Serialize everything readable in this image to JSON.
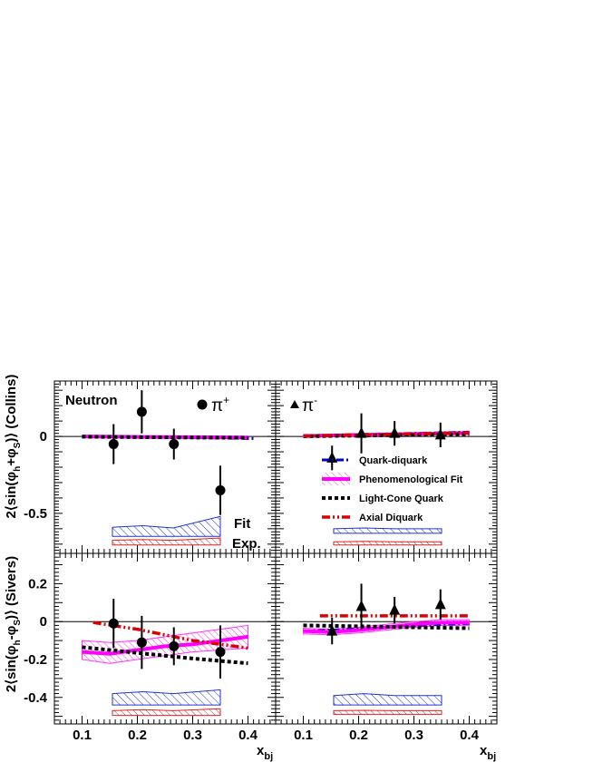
{
  "chart_data": {
    "type": "scatter",
    "xlabel": "x",
    "xlabel_sub": "bj",
    "xlim": [
      0.05,
      0.45
    ],
    "x_ticks": [
      "0.1",
      "0.2",
      "0.3",
      "0.4"
    ],
    "legend": {
      "position": "right-middle of top-right panel",
      "entries": [
        {
          "label": "Quark-diquark",
          "color": "#0000cc",
          "style": "dash-dot"
        },
        {
          "label": "Phenomenological Fit",
          "color": "#ff00ff",
          "style": "band"
        },
        {
          "label": "Light-Cone Quark",
          "color": "#000000",
          "style": "dotted"
        },
        {
          "label": "Axial Diquark",
          "color": "#dd0000",
          "style": "dash-dot-dot"
        }
      ]
    },
    "band_labels": {
      "fit": "Fit",
      "exp": "Exp."
    },
    "rows": [
      {
        "ylabel_pre": "2⟨sin(φ",
        "ylabel_sub1": "h",
        "ylabel_mid": "+φ",
        "ylabel_sub2": "S",
        "ylabel_post": ")⟩ (Collins)",
        "ylim": [
          -0.76,
          0.36
        ],
        "y_ticks": [
          {
            "v": 0,
            "t": "0"
          },
          {
            "v": -0.5,
            "t": "-0.5"
          }
        ]
      },
      {
        "ylabel_pre": "2⟨sin(φ",
        "ylabel_sub1": "h",
        "ylabel_mid": "-φ",
        "ylabel_sub2": "S",
        "ylabel_post": ")⟩ (Sivers)",
        "ylim": [
          -0.54,
          0.36
        ],
        "y_ticks": [
          {
            "v": 0.2,
            "t": "0.2"
          },
          {
            "v": 0,
            "t": "0"
          },
          {
            "v": -0.2,
            "t": "-0.2"
          },
          {
            "v": -0.4,
            "t": "-0.4"
          }
        ]
      }
    ],
    "panels": [
      {
        "row": 0,
        "col": 0,
        "target": "Neutron",
        "hadron": "π",
        "charge": "+",
        "marker": "circle",
        "points": {
          "x": [
            0.157,
            0.208,
            0.266,
            0.35
          ],
          "y": [
            -0.05,
            0.16,
            -0.05,
            -0.35
          ],
          "err": [
            0.13,
            0.14,
            0.1,
            0.16
          ]
        },
        "fit_band": {
          "x": [
            0.1,
            0.12,
            0.15,
            0.2,
            0.25,
            0.3,
            0.35,
            0.4
          ],
          "lo": [
            -0.005,
            -0.006,
            -0.007,
            -0.008,
            -0.009,
            -0.01,
            -0.011,
            -0.012
          ],
          "hi": [
            0.005,
            0.004,
            0.003,
            0.002,
            0.001,
            0.0,
            -0.001,
            -0.002
          ]
        },
        "curves": [
          {
            "name": "Quark-diquark",
            "x": [
              0.1,
              0.2,
              0.3,
              0.41
            ],
            "y": [
              0.0,
              -0.004,
              -0.008,
              -0.014
            ]
          },
          {
            "name": "Phenomenological Fit",
            "x": [
              0.1,
              0.2,
              0.3,
              0.4
            ],
            "y": [
              0.0,
              -0.003,
              -0.005,
              -0.007
            ]
          },
          {
            "name": "Light-Cone Quark",
            "x": [
              0.1,
              0.2,
              0.3,
              0.4
            ],
            "y": [
              -0.002,
              -0.005,
              -0.007,
              -0.009
            ]
          }
        ],
        "sys_fit": {
          "x": [
            0.155,
            0.21,
            0.265,
            0.35
          ],
          "lo": -0.65,
          "hi": [
            -0.59,
            -0.58,
            -0.595,
            -0.52
          ]
        },
        "sys_exp": {
          "x": [
            0.155,
            0.21,
            0.265,
            0.35
          ],
          "lo": -0.705,
          "hi": [
            -0.675,
            -0.67,
            -0.675,
            -0.66
          ]
        }
      },
      {
        "row": 0,
        "col": 1,
        "hadron": "π",
        "charge": "-",
        "marker": "triangle",
        "points": {
          "x": [
            0.152,
            0.205,
            0.265,
            0.348
          ],
          "y": [
            -0.14,
            0.02,
            0.02,
            0.01
          ],
          "err": [
            0.08,
            0.13,
            0.08,
            0.08
          ]
        },
        "fit_band": {
          "x": [
            0.1,
            0.15,
            0.2,
            0.25,
            0.3,
            0.35,
            0.4
          ],
          "lo": [
            -0.002,
            0.0,
            0.003,
            0.006,
            0.009,
            0.012,
            0.014
          ],
          "hi": [
            0.008,
            0.012,
            0.016,
            0.02,
            0.024,
            0.028,
            0.032
          ]
        },
        "curves": [
          {
            "name": "Quark-diquark",
            "x": [
              0.1,
              0.2,
              0.3,
              0.4
            ],
            "y": [
              0.005,
              0.013,
              0.02,
              0.028
            ]
          },
          {
            "name": "Phenomenological Fit",
            "x": [
              0.1,
              0.2,
              0.3,
              0.4
            ],
            "y": [
              0.002,
              0.009,
              0.016,
              0.022
            ]
          },
          {
            "name": "Light-Cone Quark",
            "x": [
              0.1,
              0.2,
              0.3,
              0.4
            ],
            "y": [
              0.001,
              0.005,
              0.01,
              0.015
            ]
          },
          {
            "name": "Axial Diquark",
            "x": [
              0.1,
              0.2,
              0.3,
              0.4
            ],
            "y": [
              0.003,
              0.01,
              0.017,
              0.024
            ]
          }
        ],
        "sys_fit": {
          "x": [
            0.155,
            0.21,
            0.265,
            0.35
          ],
          "lo": -0.63,
          "hi": [
            -0.6,
            -0.595,
            -0.6,
            -0.6
          ]
        },
        "sys_exp": {
          "x": [
            0.155,
            0.21,
            0.265,
            0.35
          ],
          "lo": -0.705,
          "hi": [
            -0.685,
            -0.682,
            -0.685,
            -0.685
          ]
        }
      },
      {
        "row": 1,
        "col": 0,
        "points": {
          "x": [
            0.157,
            0.208,
            0.266,
            0.35
          ],
          "y": [
            -0.01,
            -0.11,
            -0.13,
            -0.16
          ],
          "err": [
            0.13,
            0.14,
            0.1,
            0.14
          ]
        },
        "fit_band": {
          "x": [
            0.1,
            0.15,
            0.2,
            0.25,
            0.3,
            0.35,
            0.4
          ],
          "lo": [
            -0.2,
            -0.22,
            -0.2,
            -0.18,
            -0.16,
            -0.15,
            -0.14
          ],
          "hi": [
            -0.1,
            -0.11,
            -0.1,
            -0.08,
            -0.06,
            -0.04,
            -0.02
          ]
        },
        "curves": [
          {
            "name": "Phenomenological Fit",
            "x": [
              0.1,
              0.15,
              0.2,
              0.25,
              0.3,
              0.35,
              0.4
            ],
            "y": [
              -0.16,
              -0.17,
              -0.15,
              -0.13,
              -0.12,
              -0.1,
              -0.08
            ]
          },
          {
            "name": "Light-Cone Quark",
            "x": [
              0.1,
              0.2,
              0.3,
              0.4
            ],
            "y": [
              -0.135,
              -0.165,
              -0.195,
              -0.22
            ]
          },
          {
            "name": "Axial Diquark",
            "x": [
              0.12,
              0.2,
              0.3,
              0.4
            ],
            "y": [
              -0.005,
              -0.04,
              -0.1,
              -0.14
            ]
          }
        ],
        "sys_fit": {
          "x": [
            0.155,
            0.21,
            0.265,
            0.35
          ],
          "lo": -0.44,
          "hi": [
            -0.38,
            -0.37,
            -0.38,
            -0.36
          ]
        },
        "sys_exp": {
          "x": [
            0.155,
            0.21,
            0.265,
            0.35
          ],
          "lo": -0.495,
          "hi": [
            -0.47,
            -0.465,
            -0.47,
            -0.46
          ]
        }
      },
      {
        "row": 1,
        "col": 1,
        "points": {
          "x": [
            0.152,
            0.205,
            0.265,
            0.348
          ],
          "y": [
            -0.05,
            0.08,
            0.06,
            0.09
          ],
          "err": [
            0.07,
            0.12,
            0.07,
            0.08
          ]
        },
        "fit_band": {
          "x": [
            0.1,
            0.15,
            0.2,
            0.25,
            0.3,
            0.35,
            0.4
          ],
          "lo": [
            -0.065,
            -0.07,
            -0.06,
            -0.045,
            -0.03,
            -0.02,
            -0.02
          ],
          "hi": [
            -0.035,
            -0.04,
            -0.03,
            -0.015,
            0.0,
            0.01,
            0.01
          ]
        },
        "curves": [
          {
            "name": "Quark-diquark",
            "x": [
              0.1,
              0.2,
              0.3,
              0.4
            ],
            "y": [
              -0.05,
              -0.04,
              -0.02,
              -0.01
            ]
          },
          {
            "name": "Phenomenological Fit",
            "x": [
              0.1,
              0.15,
              0.2,
              0.25,
              0.3,
              0.35,
              0.4
            ],
            "y": [
              -0.05,
              -0.055,
              -0.045,
              -0.03,
              -0.015,
              -0.005,
              -0.005
            ]
          },
          {
            "name": "Light-Cone Quark",
            "x": [
              0.1,
              0.2,
              0.3,
              0.4
            ],
            "y": [
              -0.02,
              -0.025,
              -0.03,
              -0.035
            ]
          },
          {
            "name": "Axial Diquark",
            "x": [
              0.13,
              0.2,
              0.3,
              0.4
            ],
            "y": [
              0.03,
              0.03,
              0.03,
              0.03
            ]
          }
        ],
        "sys_fit": {
          "x": [
            0.155,
            0.21,
            0.265,
            0.35
          ],
          "lo": -0.44,
          "hi": [
            -0.39,
            -0.38,
            -0.39,
            -0.39
          ]
        },
        "sys_exp": {
          "x": [
            0.155,
            0.21,
            0.265,
            0.35
          ],
          "lo": -0.49,
          "hi": [
            -0.47,
            -0.468,
            -0.47,
            -0.47
          ]
        }
      }
    ]
  }
}
